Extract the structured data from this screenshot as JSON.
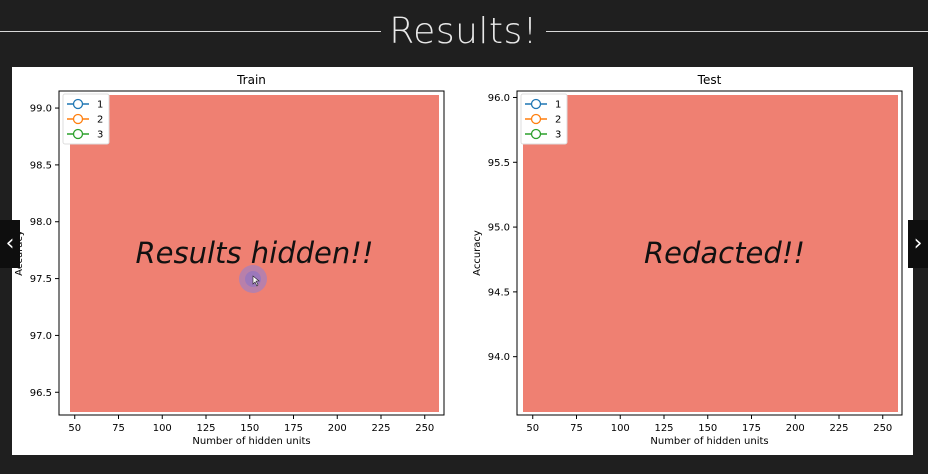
{
  "slide": {
    "title": "Results!",
    "prev_arrow": "‹",
    "next_arrow": "›"
  },
  "chart_data": [
    {
      "type": "line",
      "title": "Train",
      "xlabel": "Number of hidden units",
      "ylabel": "Accuracy",
      "xlim": [
        41,
        261
      ],
      "ylim": [
        96.3,
        99.15
      ],
      "xticks": [
        50,
        75,
        100,
        125,
        150,
        175,
        200,
        225,
        250
      ],
      "yticks": [
        96.5,
        97.0,
        97.5,
        98.0,
        98.5,
        99.0
      ],
      "ytick_decimals": 1,
      "legend_position": "top-left",
      "series": [
        {
          "name": "1",
          "color": "#1f77b4"
        },
        {
          "name": "2",
          "color": "#ff7f0e"
        },
        {
          "name": "3",
          "color": "#2ca02c"
        }
      ],
      "overlay": {
        "text": "Results hidden!!",
        "color": "#ef8072"
      }
    },
    {
      "type": "line",
      "title": "Test",
      "xlabel": "Number of hidden units",
      "ylabel": "Accuracy",
      "xlim": [
        41,
        261
      ],
      "ylim": [
        93.55,
        96.05
      ],
      "xticks": [
        50,
        75,
        100,
        125,
        150,
        175,
        200,
        225,
        250
      ],
      "yticks": [
        94.0,
        94.5,
        95.0,
        95.5,
        96.0
      ],
      "ytick_decimals": 1,
      "legend_position": "top-left",
      "series": [
        {
          "name": "1",
          "color": "#1f77b4"
        },
        {
          "name": "2",
          "color": "#ff7f0e"
        },
        {
          "name": "3",
          "color": "#2ca02c"
        }
      ],
      "overlay": {
        "text": "Redacted!!",
        "color": "#ef8072"
      }
    }
  ]
}
